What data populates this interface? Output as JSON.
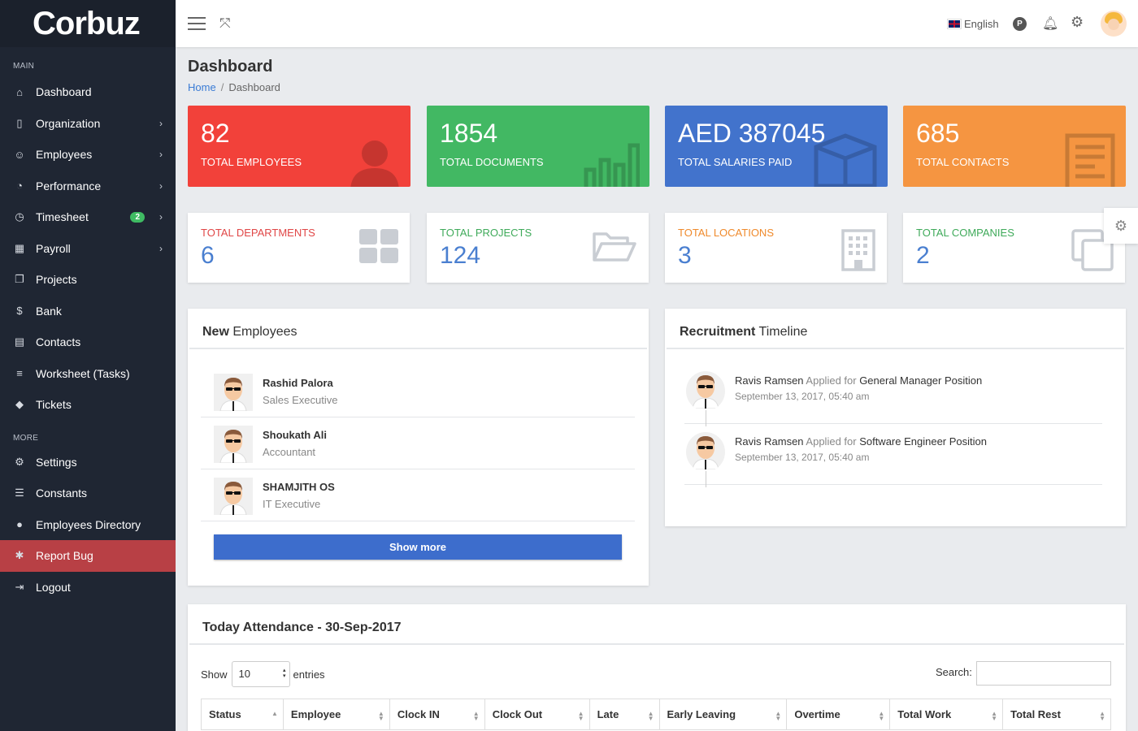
{
  "app": {
    "logo": "Corbuz"
  },
  "sidebar": {
    "section_main": "MAIN",
    "section_more": "MORE",
    "main_items": [
      {
        "label": "Dashboard",
        "icon": "home-icon",
        "glyph": "⌂",
        "chevron": false
      },
      {
        "label": "Organization",
        "icon": "building-icon",
        "glyph": "▯",
        "chevron": true
      },
      {
        "label": "Employees",
        "icon": "user-icon",
        "glyph": "☺",
        "chevron": true
      },
      {
        "label": "Performance",
        "icon": "dashboard-icon",
        "glyph": "◔",
        "chevron": true
      },
      {
        "label": "Timesheet",
        "icon": "clock-icon",
        "glyph": "◷",
        "chevron": true,
        "badge": "2"
      },
      {
        "label": "Payroll",
        "icon": "calculator-icon",
        "glyph": "▦",
        "chevron": true
      },
      {
        "label": "Projects",
        "icon": "projects-icon",
        "glyph": "❐",
        "chevron": false
      },
      {
        "label": "Bank",
        "icon": "dollar-icon",
        "glyph": "$",
        "chevron": false
      },
      {
        "label": "Contacts",
        "icon": "id-card-icon",
        "glyph": "▤",
        "chevron": false
      },
      {
        "label": "Worksheet (Tasks)",
        "icon": "tasks-icon",
        "glyph": "≡",
        "chevron": false
      },
      {
        "label": "Tickets",
        "icon": "ticket-icon",
        "glyph": "◆",
        "chevron": false
      }
    ],
    "more_items": [
      {
        "label": "Settings",
        "icon": "gear-icon",
        "glyph": "⚙",
        "active": false
      },
      {
        "label": "Constants",
        "icon": "bars-icon",
        "glyph": "☰",
        "active": false
      },
      {
        "label": "Employees Directory",
        "icon": "person-icon",
        "glyph": "●",
        "active": false
      },
      {
        "label": "Report Bug",
        "icon": "bug-icon",
        "glyph": "✱",
        "active": true
      },
      {
        "label": "Logout",
        "icon": "logout-icon",
        "glyph": "⇥",
        "active": false
      }
    ]
  },
  "topbar": {
    "language": "English",
    "p_label": "P"
  },
  "page": {
    "title": "Dashboard",
    "breadcrumb_home": "Home",
    "breadcrumb_current": "Dashboard"
  },
  "stats": [
    {
      "value": "82",
      "label": "TOTAL EMPLOYEES",
      "color": "#f2413a",
      "icon": "user-icon"
    },
    {
      "value": "1854",
      "label": "TOTAL DOCUMENTS",
      "color": "#42b863",
      "icon": "bar-chart-icon"
    },
    {
      "value": "AED 387045",
      "label": "TOTAL SALARIES PAID",
      "color": "#4273cc",
      "icon": "box-icon"
    },
    {
      "value": "685",
      "label": "TOTAL CONTACTS",
      "color": "#f59541",
      "icon": "document-icon"
    }
  ],
  "cards": [
    {
      "label": "TOTAL DEPARTMENTS",
      "value": "6",
      "color": "#e04747",
      "icon": "grid-icon"
    },
    {
      "label": "TOTAL PROJECTS",
      "value": "124",
      "color": "#3faa5a",
      "icon": "folder-open-icon"
    },
    {
      "label": "TOTAL LOCATIONS",
      "value": "3",
      "color": "#ef8a2c",
      "icon": "building-icon"
    },
    {
      "label": "TOTAL COMPANIES",
      "value": "2",
      "color": "#3faa5a",
      "icon": "copy-icon"
    }
  ],
  "new_employees": {
    "title_bold": "New",
    "title_rest": " Employees",
    "items": [
      {
        "name": "Rashid Palora",
        "role": "Sales Executive"
      },
      {
        "name": "Shoukath Ali",
        "role": "Accountant"
      },
      {
        "name": "SHAMJITH OS",
        "role": "IT Executive"
      }
    ],
    "show_more": "Show more"
  },
  "recruitment": {
    "title_bold": "Recruitment",
    "title_rest": " Timeline",
    "items": [
      {
        "name": "Ravis Ramsen",
        "applied": " Applied for ",
        "position": "General Manager",
        "suffix": " Position",
        "date": "September 13, 2017, 05:40 am"
      },
      {
        "name": "Ravis Ramsen",
        "applied": " Applied for ",
        "position": "Software Engineer",
        "suffix": " Position",
        "date": "September 13, 2017, 05:40 am"
      }
    ]
  },
  "attendance": {
    "title": "Today Attendance - 30-Sep-2017",
    "show_label": "Show",
    "entries_value": "10",
    "entries_label": "entries",
    "search_label": "Search:",
    "columns": [
      "Status",
      "Employee",
      "Clock IN",
      "Clock Out",
      "Late",
      "Early Leaving",
      "Overtime",
      "Total Work",
      "Total Rest"
    ]
  }
}
